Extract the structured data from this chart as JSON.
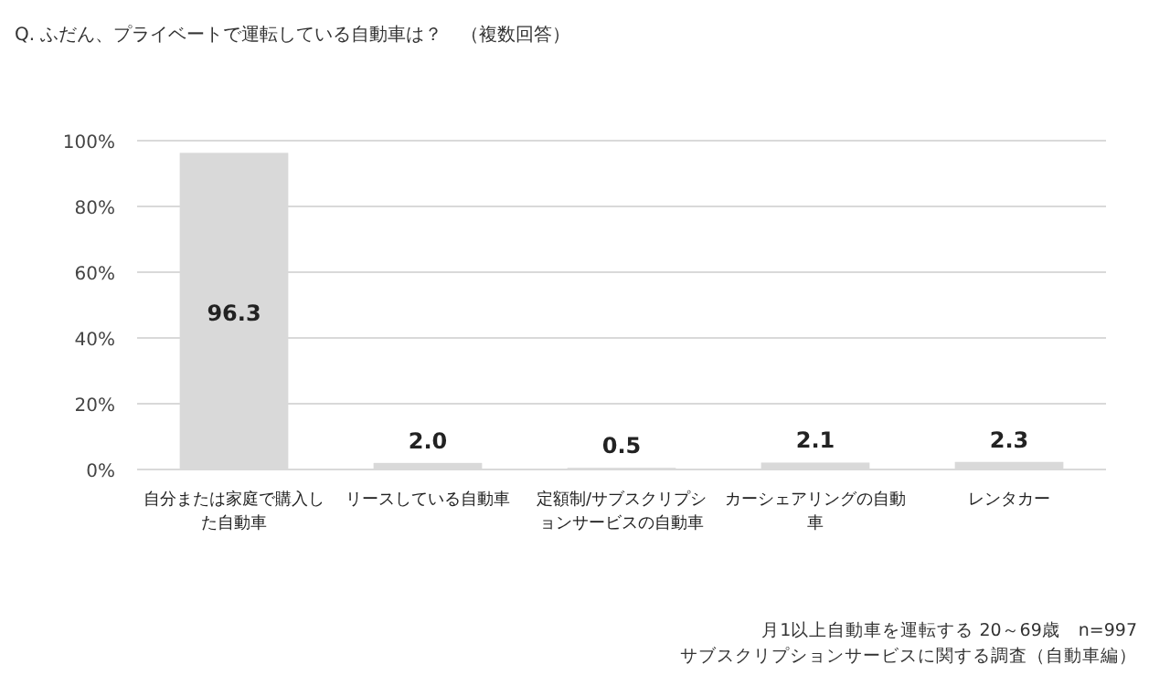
{
  "chart_data": {
    "type": "bar",
    "title": "Q. ふだん、プライベートで運転している自動車は？　（複数回答）",
    "categories": [
      "自分または家庭で購入した自動車",
      "リースしている自動車",
      "定額制/サブスクリプションサービスの自動車",
      "カーシェアリングの自動車",
      "レンタカー"
    ],
    "values": [
      96.3,
      2.0,
      0.5,
      2.1,
      2.3
    ],
    "value_labels": [
      "96.3",
      "2.0",
      "0.5",
      "2.1",
      "2.3"
    ],
    "color": "#d9d9d9",
    "ylim": [
      0,
      100
    ],
    "yticks": [
      {
        "value": 0,
        "label": "0%"
      },
      {
        "value": 20,
        "label": "20%"
      },
      {
        "value": 40,
        "label": "40%"
      },
      {
        "value": 60,
        "label": "60%"
      },
      {
        "value": 80,
        "label": "80%"
      },
      {
        "value": 100,
        "label": "100%"
      }
    ],
    "grid": "y",
    "annotations": [
      "月1以上自動車を運転する 20～69歳　n=997",
      "サブスクリプションサービスに関する調査（自動車編）"
    ]
  }
}
